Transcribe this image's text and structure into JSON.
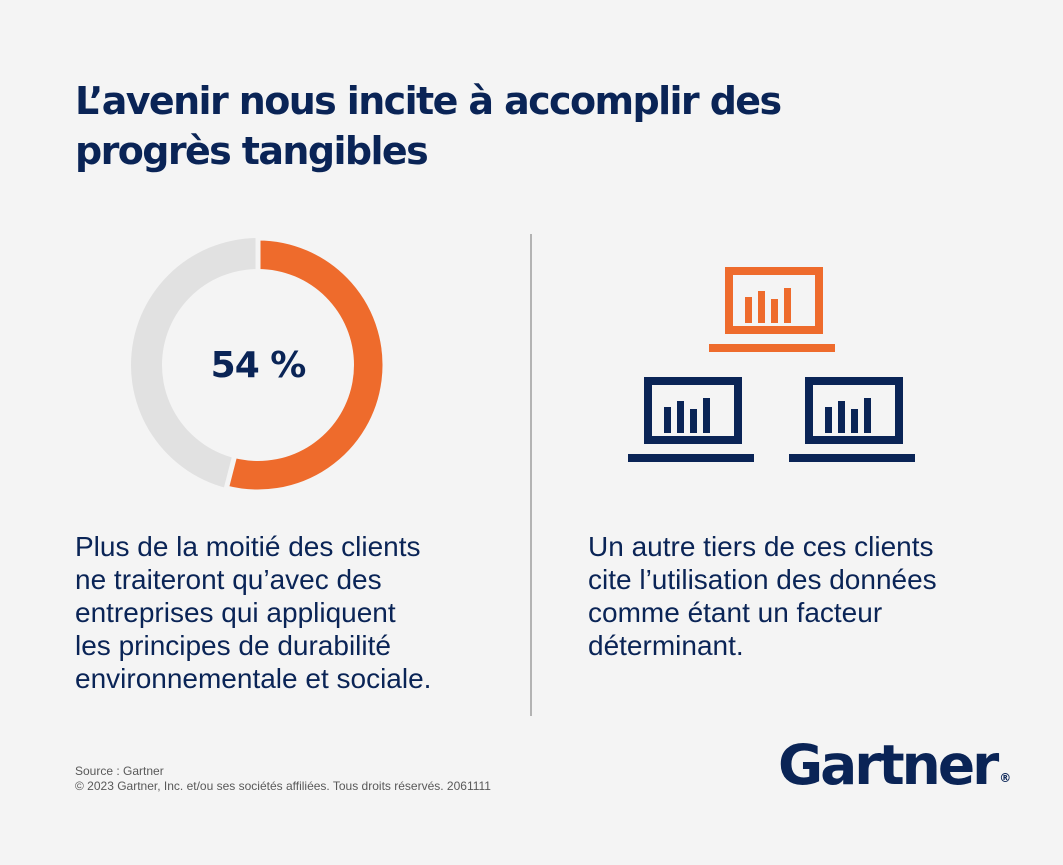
{
  "title": {
    "line1": "L’avenir nous incite à accomplir des",
    "line2": "progrès tangibles"
  },
  "stat": {
    "value": 54,
    "label": "54 %",
    "color": "#ee6b2c",
    "track_color": "#e1e1e1",
    "inner_color": "#f4f4f4"
  },
  "left_text": {
    "lines": [
      "Plus de la moitié des clients",
      "ne traiteront qu’avec des",
      "entreprises qui appliquent",
      "les principes de durabilité",
      "environnementale et sociale."
    ]
  },
  "right_text": {
    "lines": [
      "Un autre tiers de ces clients",
      "cite l’utilisation des données",
      "comme étant un facteur",
      "déterminant."
    ]
  },
  "icons": {
    "top": "laptop-chart-icon",
    "bottom_left": "laptop-chart-icon",
    "bottom_right": "laptop-chart-icon",
    "orange": "#ee6b2c",
    "navy": "#0a2456"
  },
  "source": {
    "line1": "Source : Gartner",
    "line2": "© 2023 Gartner, Inc. et/ou ses sociétés affiliées. Tous droits réservés. 2061111"
  },
  "logo": {
    "text": "Gartner",
    "mark": "®"
  }
}
